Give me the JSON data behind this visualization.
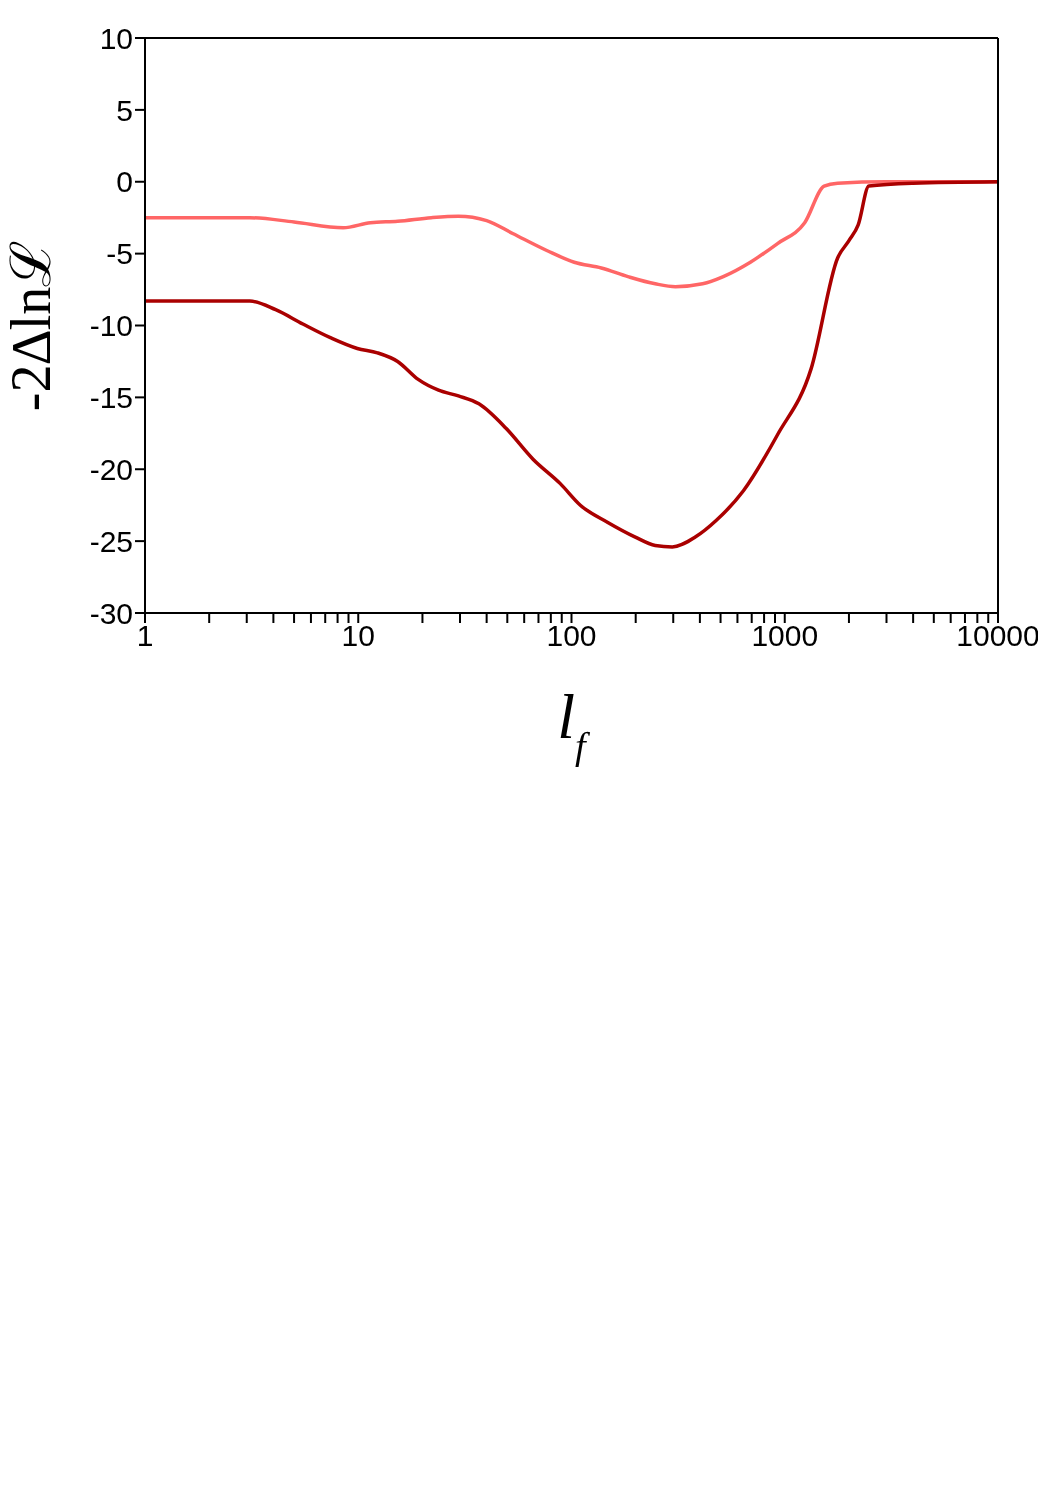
{
  "chart_data": {
    "type": "line",
    "xlabel": "l$_{f}$",
    "ylabel": "-2∆lnℒ",
    "log": "x",
    "grid": false,
    "legend": false,
    "marker": "none",
    "line_style": "solid",
    "xlim": [
      1,
      10000
    ],
    "xticks": [
      1,
      {
        "value": 2,
        "label": null
      },
      {
        "value": 3,
        "label": null
      },
      {
        "value": 4,
        "label": null
      },
      {
        "value": 5,
        "label": null
      },
      {
        "value": 6,
        "label": null
      },
      {
        "value": 7,
        "label": null
      },
      {
        "value": 8,
        "label": null
      },
      {
        "value": 9,
        "label": null
      },
      10,
      {
        "value": 20,
        "label": null
      },
      {
        "value": 30,
        "label": null
      },
      {
        "value": 40,
        "label": null
      },
      {
        "value": 50,
        "label": null
      },
      {
        "value": 60,
        "label": null
      },
      {
        "value": 70,
        "label": null
      },
      {
        "value": 80,
        "label": null
      },
      {
        "value": 90,
        "label": null
      },
      100,
      {
        "value": 200,
        "label": null
      },
      {
        "value": 300,
        "label": null
      },
      {
        "value": 400,
        "label": null
      },
      {
        "value": 500,
        "label": null
      },
      {
        "value": 600,
        "label": null
      },
      {
        "value": 700,
        "label": null
      },
      {
        "value": 800,
        "label": null
      },
      {
        "value": 900,
        "label": null
      },
      1000,
      {
        "value": 2000,
        "label": null
      },
      {
        "value": 3000,
        "label": null
      },
      {
        "value": 4000,
        "label": null
      },
      {
        "value": 5000,
        "label": null
      },
      {
        "value": 6000,
        "label": null
      },
      {
        "value": 7000,
        "label": null
      },
      {
        "value": 8000,
        "label": null
      },
      {
        "value": 9000,
        "label": null
      },
      10000
    ],
    "ylim": [
      -30,
      10
    ],
    "yticks": [
      -30,
      -25,
      -20,
      -15,
      -10,
      -5,
      0,
      5,
      10
    ],
    "series": [
      {
        "color": "#ff6666",
        "x": [
          1,
          3.1,
          5,
          8.5,
          11.4,
          15.3,
          22,
          29.5,
          40,
          53,
          77,
          103,
          138,
          184,
          247,
          307,
          412,
          515,
          690,
          925,
          1240,
          1530,
          1770,
          3000,
          10000
        ],
        "values": [
          -2.5,
          -2.5,
          -2.8,
          -3.2,
          -2.85,
          -2.75,
          -2.5,
          -2.4,
          -2.7,
          -3.6,
          -4.8,
          -5.6,
          -6.0,
          -6.6,
          -7.1,
          -7.3,
          -7.1,
          -6.6,
          -5.6,
          -4.3,
          -2.85,
          -0.3,
          -0.1,
          0,
          0
        ]
      },
      {
        "color": "#aa0000",
        "x": [
          1,
          3.1,
          4.1,
          5.5,
          7.4,
          9.9,
          12.3,
          15.3,
          19.1,
          23.8,
          29.5,
          36.8,
          49.3,
          66,
          88.6,
          110,
          148,
          198,
          247,
          297,
          382,
          478,
          640,
          925,
          1330,
          1770,
          2000,
          2210,
          2480,
          4000,
          10000
        ],
        "values": [
          -8.3,
          -8.3,
          -8.9,
          -9.9,
          -10.85,
          -11.6,
          -11.9,
          -12.5,
          -13.75,
          -14.5,
          -14.9,
          -15.45,
          -17.15,
          -19.3,
          -21.0,
          -22.5,
          -23.7,
          -24.7,
          -25.3,
          -25.4,
          -24.7,
          -23.55,
          -21.5,
          -17.6,
          -13.0,
          -5.3,
          -4.1,
          -3.0,
          -0.3,
          -0.1,
          0
        ]
      }
    ]
  }
}
